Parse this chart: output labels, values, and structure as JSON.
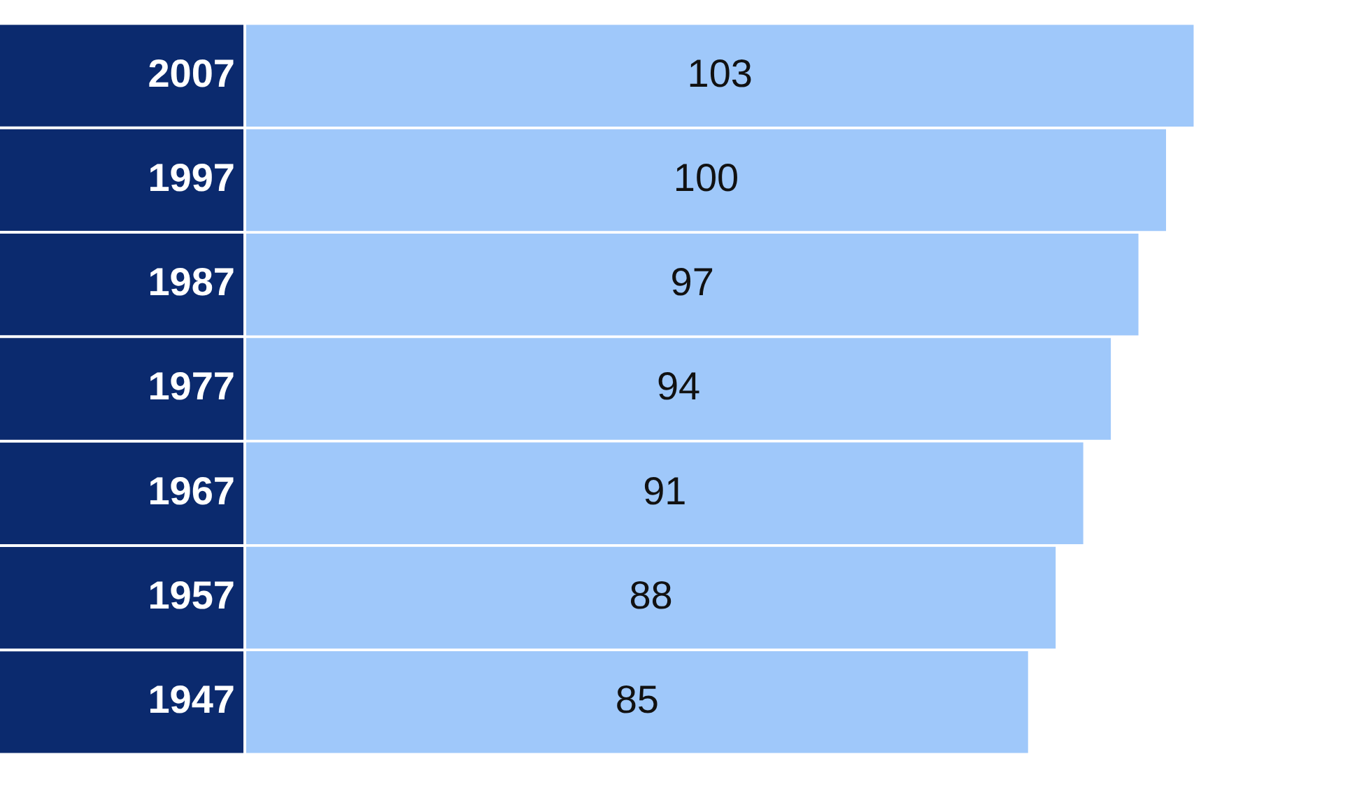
{
  "chart_data": {
    "type": "bar",
    "orientation": "horizontal",
    "categories": [
      "2007",
      "1997",
      "1987",
      "1977",
      "1967",
      "1957",
      "1947"
    ],
    "values": [
      103,
      100,
      97,
      94,
      91,
      88,
      85
    ],
    "color": "#9fc8fa",
    "tick_labels": "y",
    "data_labels": true
  }
}
